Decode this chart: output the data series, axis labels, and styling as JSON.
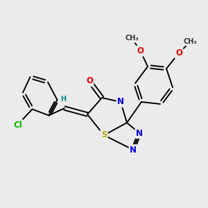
{
  "bg_color": "#ebebeb",
  "bond_color": "#000000",
  "atom_colors": {
    "N": "#0000ee",
    "O": "#ee0000",
    "S": "#bbaa00",
    "Cl": "#00bb00",
    "H": "#008888",
    "C": "#000000"
  },
  "font_size_atom": 8.5,
  "font_size_small": 7.0
}
